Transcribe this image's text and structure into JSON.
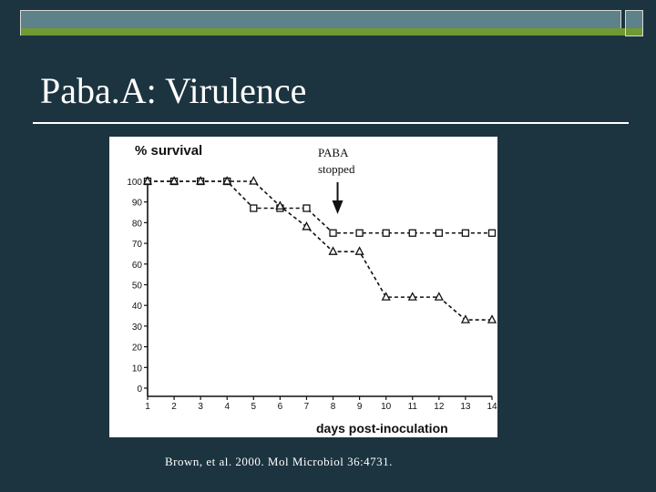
{
  "slide": {
    "title": "Paba.A: Virulence",
    "citation": "Brown, et al. 2000. Mol Microbiol 36:4731."
  },
  "colors": {
    "background": "#1c3440",
    "accent_bar": "#5d8289",
    "accent_line": "#6f9a33",
    "text": "#ffffff"
  },
  "chart_data": {
    "type": "line",
    "title": "",
    "ylabel": "% survival",
    "xlabel": "days post-inoculation",
    "x": [
      1,
      2,
      3,
      4,
      5,
      6,
      7,
      8,
      9,
      10,
      11,
      12,
      13,
      14
    ],
    "x_ticks": [
      "1",
      "2",
      "3",
      "4",
      "5",
      "6",
      "7",
      "8",
      "9",
      "10",
      "11",
      "12",
      "13",
      "14"
    ],
    "y_ticks": [
      "0",
      "10",
      "20",
      "30",
      "40",
      "50",
      "60",
      "70",
      "80",
      "90",
      "100"
    ],
    "xlim": [
      1,
      14
    ],
    "ylim": [
      0,
      100
    ],
    "grid": false,
    "legend": "none",
    "series": [
      {
        "marker": "square",
        "line_style": "dashed",
        "x": [
          1,
          2,
          3,
          4,
          5,
          6,
          7,
          8,
          9,
          10,
          11,
          12,
          13,
          14
        ],
        "y": [
          100,
          100,
          100,
          100,
          87,
          87,
          87,
          75,
          75,
          75,
          75,
          75,
          75,
          75
        ]
      },
      {
        "marker": "triangle",
        "line_style": "dashed",
        "x": [
          1,
          2,
          3,
          4,
          5,
          6,
          7,
          8,
          9,
          10,
          11,
          12,
          13,
          14
        ],
        "y": [
          100,
          100,
          100,
          100,
          100,
          88,
          78,
          66,
          66,
          44,
          44,
          44,
          33,
          33
        ]
      }
    ],
    "annotation": {
      "text_line1": "PABA",
      "text_line2": "stopped",
      "x": 8
    }
  }
}
